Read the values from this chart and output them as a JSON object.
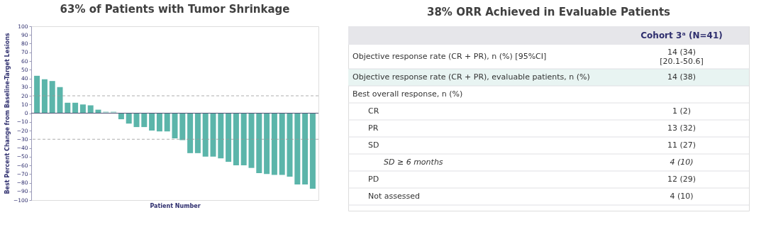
{
  "chart_data": [
    {
      "type": "bar",
      "title": "63% of Patients with Tumor Shrinkage",
      "ylabel": "Best Percent Change from Baseline-Target Lesions",
      "xlabel": "Patient Number",
      "categories": [
        null,
        null,
        null,
        null,
        null,
        null,
        null,
        null,
        null,
        null,
        null,
        null,
        null,
        null,
        null,
        null,
        null,
        null,
        null,
        null,
        null,
        null,
        null,
        null,
        null,
        null,
        null,
        null,
        null,
        null,
        null,
        null,
        null,
        null,
        null,
        null,
        null
      ],
      "values": [
        43,
        39,
        37,
        30,
        12,
        12,
        10,
        9,
        4,
        2,
        2,
        -7,
        -12,
        -16,
        -16,
        -20,
        -21,
        -21,
        -29,
        -31,
        -46,
        -46,
        -50,
        -50,
        -52,
        -56,
        -60,
        -60,
        -63,
        -69,
        -70,
        -71,
        -71,
        -73,
        -82,
        -82,
        -87
      ],
      "colors": [
        "#5bb5aa",
        "#5bb5aa",
        "#5bb5aa",
        "#5bb5aa",
        "#5bb5aa",
        "#5bb5aa",
        "#5bb5aa",
        "#5bb5aa",
        "#5bb5aa",
        "#b8e0da",
        "#b8e0da",
        "#5bb5aa",
        "#5bb5aa",
        "#5bb5aa",
        "#5bb5aa",
        "#5bb5aa",
        "#5bb5aa",
        "#5bb5aa",
        "#5bb5aa",
        "#5bb5aa",
        "#5bb5aa",
        "#5bb5aa",
        "#5bb5aa",
        "#5bb5aa",
        "#5bb5aa",
        "#5bb5aa",
        "#5bb5aa",
        "#5bb5aa",
        "#5bb5aa",
        "#5bb5aa",
        "#5bb5aa",
        "#5bb5aa",
        "#5bb5aa",
        "#5bb5aa",
        "#5bb5aa",
        "#5bb5aa",
        "#5bb5aa"
      ],
      "ylim": [
        -100,
        100
      ],
      "yticks": [
        -100,
        -90,
        -80,
        -70,
        -60,
        -50,
        -40,
        -30,
        -20,
        -10,
        0,
        10,
        20,
        30,
        40,
        50,
        60,
        70,
        80,
        90,
        100
      ],
      "ref_lines": [
        {
          "axis": "y",
          "value": 20,
          "color": "#999999",
          "line_style": "dashed"
        },
        {
          "axis": "y",
          "value": -30,
          "color": "#999999",
          "line_style": "dashed"
        }
      ],
      "grid": false,
      "tick_labels": "y"
    },
    {
      "type": "other",
      "title": "38% ORR Achieved in Evaluable Patients",
      "annotations": [
        "Cohort 3ᵃ (N=41)"
      ],
      "categories": [
        "Objective response rate (CR + PR), n (%) [95%CI]",
        "Objective response rate (CR + PR), evaluable patients, n (%)",
        "Best overall response, n (%)",
        "CR",
        "PR",
        "SD",
        "SD ≥ 6 months",
        "PD",
        "Not assessed"
      ],
      "value_labels": [
        "14 (34)\n[20.1-50.6]",
        "14 (38)",
        null,
        "1 (2)",
        "13 (32)",
        "11 (27)",
        "4 (10)",
        "12 (29)",
        "4 (10)"
      ]
    }
  ]
}
